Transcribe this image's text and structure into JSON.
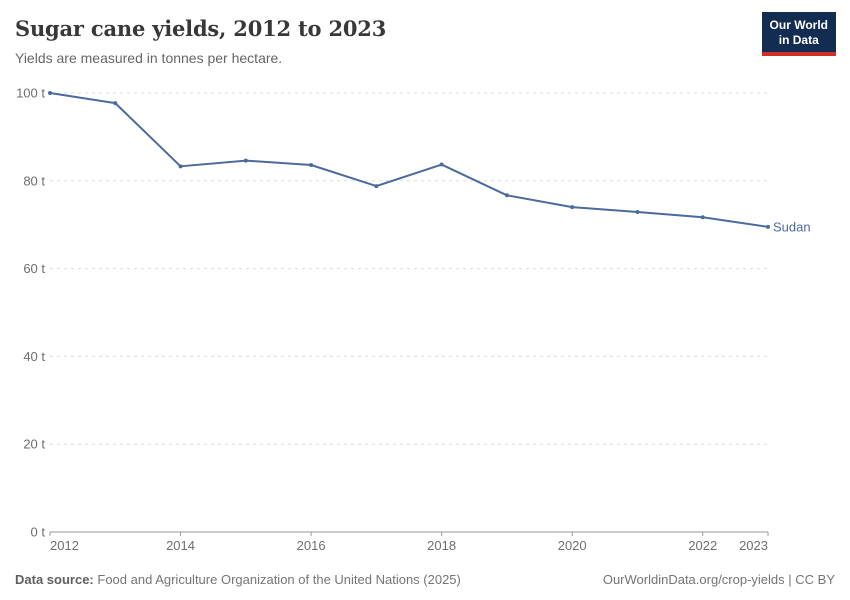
{
  "header": {
    "title": "Sugar cane yields, 2012 to 2023",
    "subtitle": "Yields are measured in tonnes per hectare."
  },
  "logo": {
    "line1": "Our World",
    "line2": "in Data",
    "bg_color": "#132c52",
    "accent_color": "#d22d26"
  },
  "chart_data": {
    "type": "line",
    "title": "Sugar cane yields, 2012 to 2023",
    "ylabel": "tonnes per hectare",
    "xlabel": "",
    "xlim": [
      2012,
      2023
    ],
    "ylim": [
      0,
      100
    ],
    "grid": "horizontal-dashed",
    "legend_position": "end-of-line",
    "x": [
      2012,
      2013,
      2014,
      2015,
      2016,
      2017,
      2018,
      2019,
      2020,
      2021,
      2022,
      2023
    ],
    "series": [
      {
        "name": "Sudan",
        "color": "#4c6a9c",
        "values": [
          100.0,
          97.7,
          83.3,
          84.6,
          83.6,
          78.8,
          83.7,
          76.7,
          74.0,
          72.9,
          71.7,
          69.5
        ]
      }
    ],
    "yticks": [
      {
        "value": 0,
        "label": "0 t"
      },
      {
        "value": 20,
        "label": "20 t"
      },
      {
        "value": 40,
        "label": "40 t"
      },
      {
        "value": 60,
        "label": "60 t"
      },
      {
        "value": 80,
        "label": "80 t"
      },
      {
        "value": 100,
        "label": "100 t"
      }
    ],
    "xticks": [
      {
        "value": 2012,
        "label": "2012"
      },
      {
        "value": 2014,
        "label": "2014"
      },
      {
        "value": 2016,
        "label": "2016"
      },
      {
        "value": 2018,
        "label": "2018"
      },
      {
        "value": 2020,
        "label": "2020"
      },
      {
        "value": 2022,
        "label": "2022"
      },
      {
        "value": 2023,
        "label": "2023"
      }
    ]
  },
  "colors": {
    "gridline": "#dcdcdc",
    "axis": "#999999",
    "tick_label": "#6e6e6e"
  },
  "footer": {
    "source_label": "Data source:",
    "source_text": "Food and Agriculture Organization of the United Nations (2025)",
    "right_text": "OurWorldinData.org/crop-yields | CC BY"
  }
}
